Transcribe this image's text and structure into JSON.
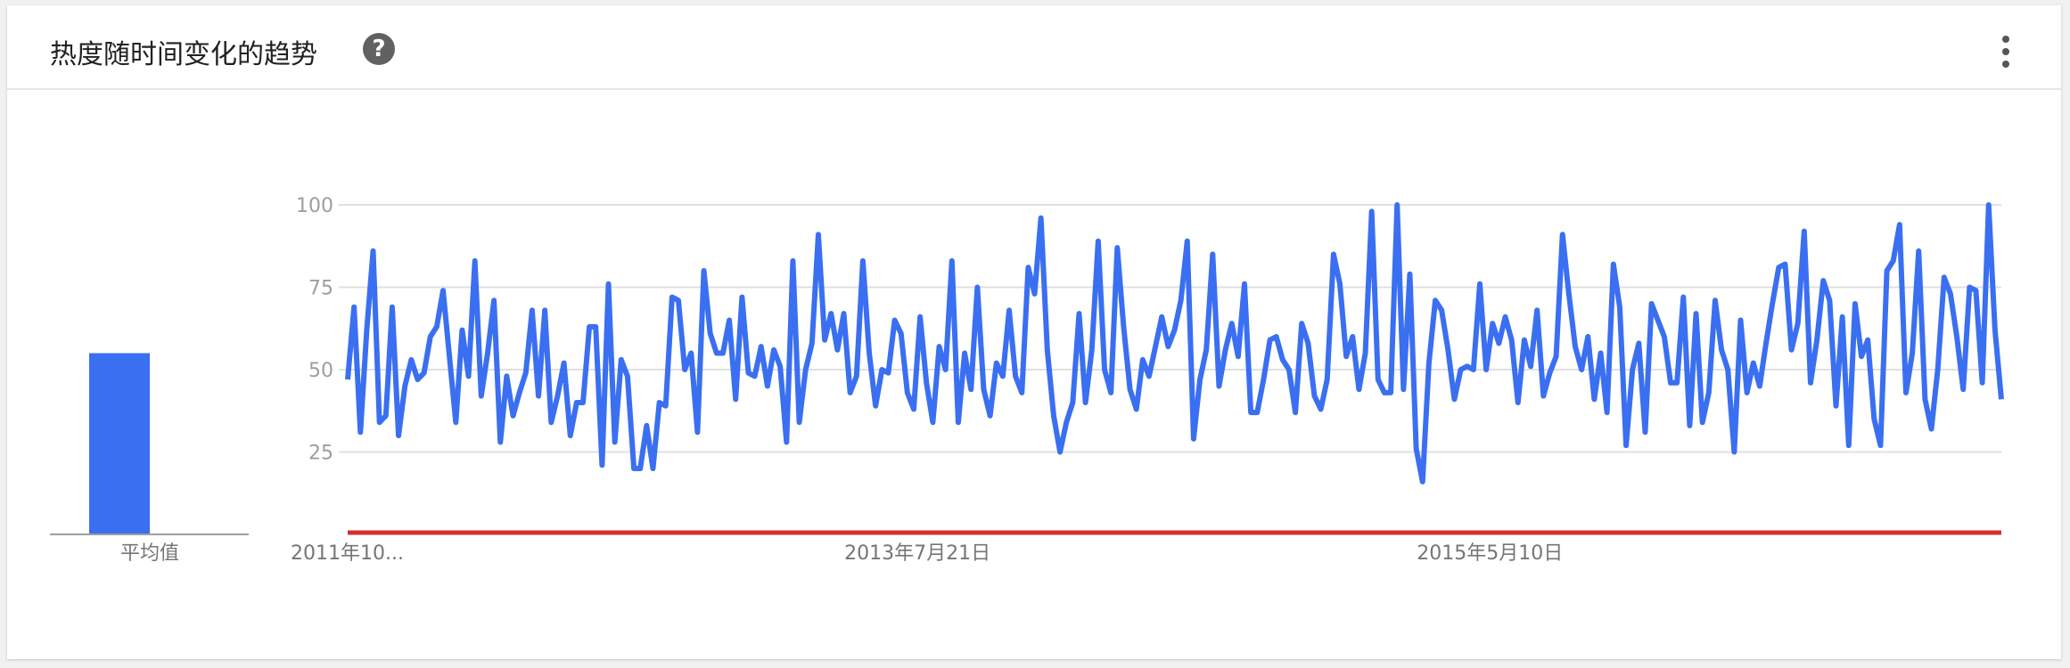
{
  "header": {
    "title": "热度随时间变化的趋势",
    "help_icon": "help-icon",
    "more_icon": "more-vert-icon"
  },
  "avg_panel": {
    "label": "平均值",
    "value": 55,
    "color": "#3a6ff2"
  },
  "colors": {
    "series": "#3a6ff2",
    "baseline": "#d32f2f",
    "grid": "#e0e0e0"
  },
  "chart_data": {
    "type": "line",
    "title": "",
    "xlabel": "",
    "ylabel": "",
    "ylim": [
      0,
      100
    ],
    "yticks": [
      "25",
      "50",
      "75",
      "100"
    ],
    "x_tick_labels": [
      "2011年10...",
      "2013年7月21日",
      "2015年5月10日"
    ],
    "x_tick_index": [
      0,
      90,
      180
    ],
    "grid": true,
    "legend": "none",
    "series": [
      {
        "values": [
          47,
          69,
          31,
          62,
          86,
          34,
          36,
          69,
          30,
          45,
          53,
          47,
          49,
          60,
          63,
          74,
          54,
          34,
          62,
          48,
          83,
          42,
          55,
          71,
          28,
          48,
          36,
          43,
          49,
          68,
          42,
          68,
          34,
          42,
          52,
          30,
          40,
          40,
          63,
          63,
          21,
          76,
          28,
          53,
          48,
          20,
          20,
          33,
          20,
          40,
          39,
          72,
          71,
          50,
          55,
          31,
          80,
          61,
          55,
          55,
          65,
          41,
          72,
          49,
          48,
          57,
          45,
          56,
          51,
          28,
          83,
          34,
          50,
          58,
          91,
          59,
          67,
          56,
          67,
          43,
          48,
          83,
          55,
          39,
          50,
          49,
          65,
          61,
          43,
          38,
          66,
          46,
          34,
          57,
          50,
          83,
          34,
          55,
          44,
          75,
          44,
          36,
          52,
          48,
          68,
          48,
          43,
          81,
          73,
          96,
          56,
          36,
          25,
          34,
          40,
          67,
          40,
          56,
          89,
          50,
          43,
          87,
          63,
          44,
          38,
          53,
          48,
          57,
          66,
          57,
          62,
          71,
          89,
          29,
          47,
          56,
          85,
          45,
          56,
          64,
          54,
          76,
          37,
          37,
          47,
          59,
          60,
          53,
          50,
          37,
          64,
          58,
          42,
          38,
          47,
          85,
          76,
          54,
          60,
          44,
          55,
          98,
          47,
          43,
          43,
          100,
          44,
          79,
          26,
          16,
          52,
          71,
          68,
          56,
          41,
          50,
          51,
          50,
          76,
          50,
          64,
          58,
          66,
          59,
          40,
          59,
          51,
          68,
          42,
          49,
          54,
          91,
          73,
          57,
          50,
          60,
          41,
          55,
          37,
          82,
          69,
          27,
          50,
          58,
          31,
          70,
          65,
          60,
          46,
          46,
          72,
          33,
          67,
          34,
          43,
          71,
          56,
          50,
          25,
          65,
          43,
          52,
          45,
          58,
          70,
          81,
          82,
          56,
          64,
          92,
          46,
          59,
          77,
          71,
          39,
          66,
          27,
          70,
          54,
          59,
          35,
          27,
          80,
          83,
          94,
          43,
          55,
          86,
          41,
          32,
          50,
          78,
          73,
          60,
          44,
          75,
          74,
          46,
          100,
          62,
          41
        ]
      }
    ],
    "baseline_value": 0
  }
}
